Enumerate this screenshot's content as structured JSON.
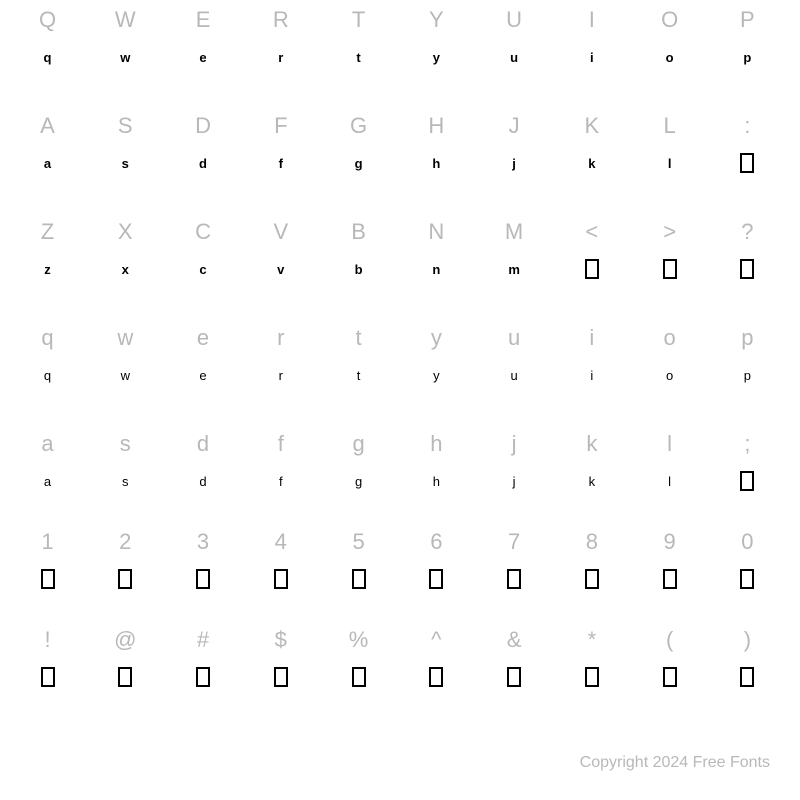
{
  "chart": {
    "type": "glyph-map",
    "columns": 10,
    "label_color": "#b8b8b8",
    "label_fontsize": 22,
    "glyph_color": "#000000",
    "glyph_fontsize": 13,
    "background_color": "#ffffff",
    "missing_box": {
      "width": 14,
      "height": 20,
      "border_width": 2,
      "border_color": "#000000"
    },
    "rows": [
      {
        "labels": [
          "Q",
          "W",
          "E",
          "R",
          "T",
          "Y",
          "U",
          "I",
          "O",
          "P"
        ],
        "glyphs": [
          {
            "type": "text",
            "value": "q",
            "style": "solid"
          },
          {
            "type": "text",
            "value": "w",
            "style": "solid"
          },
          {
            "type": "text",
            "value": "e",
            "style": "solid"
          },
          {
            "type": "text",
            "value": "r",
            "style": "solid"
          },
          {
            "type": "text",
            "value": "t",
            "style": "solid"
          },
          {
            "type": "text",
            "value": "y",
            "style": "solid"
          },
          {
            "type": "text",
            "value": "u",
            "style": "solid"
          },
          {
            "type": "text",
            "value": "i",
            "style": "solid"
          },
          {
            "type": "text",
            "value": "o",
            "style": "solid"
          },
          {
            "type": "text",
            "value": "p",
            "style": "solid"
          }
        ]
      },
      {
        "labels": [
          "A",
          "S",
          "D",
          "F",
          "G",
          "H",
          "J",
          "K",
          "L",
          ":"
        ],
        "glyphs": [
          {
            "type": "text",
            "value": "a",
            "style": "solid"
          },
          {
            "type": "text",
            "value": "s",
            "style": "solid"
          },
          {
            "type": "text",
            "value": "d",
            "style": "solid"
          },
          {
            "type": "text",
            "value": "f",
            "style": "solid"
          },
          {
            "type": "text",
            "value": "g",
            "style": "solid"
          },
          {
            "type": "text",
            "value": "h",
            "style": "solid"
          },
          {
            "type": "text",
            "value": "j",
            "style": "solid"
          },
          {
            "type": "text",
            "value": "k",
            "style": "solid"
          },
          {
            "type": "text",
            "value": "l",
            "style": "solid"
          },
          {
            "type": "box"
          }
        ]
      },
      {
        "labels": [
          "Z",
          "X",
          "C",
          "V",
          "B",
          "N",
          "M",
          "<",
          ">",
          "?"
        ],
        "glyphs": [
          {
            "type": "text",
            "value": "z",
            "style": "solid"
          },
          {
            "type": "text",
            "value": "x",
            "style": "solid"
          },
          {
            "type": "text",
            "value": "c",
            "style": "solid"
          },
          {
            "type": "text",
            "value": "v",
            "style": "solid"
          },
          {
            "type": "text",
            "value": "b",
            "style": "solid"
          },
          {
            "type": "text",
            "value": "n",
            "style": "solid"
          },
          {
            "type": "text",
            "value": "m",
            "style": "solid"
          },
          {
            "type": "box"
          },
          {
            "type": "box"
          },
          {
            "type": "box"
          }
        ]
      },
      {
        "labels": [
          "q",
          "w",
          "e",
          "r",
          "t",
          "y",
          "u",
          "i",
          "o",
          "p"
        ],
        "glyphs": [
          {
            "type": "text",
            "value": "q",
            "style": "outline"
          },
          {
            "type": "text",
            "value": "w",
            "style": "outline"
          },
          {
            "type": "text",
            "value": "e",
            "style": "outline"
          },
          {
            "type": "text",
            "value": "r",
            "style": "outline"
          },
          {
            "type": "text",
            "value": "t",
            "style": "outline"
          },
          {
            "type": "text",
            "value": "y",
            "style": "outline"
          },
          {
            "type": "text",
            "value": "u",
            "style": "outline"
          },
          {
            "type": "text",
            "value": "i",
            "style": "outline"
          },
          {
            "type": "text",
            "value": "o",
            "style": "outline"
          },
          {
            "type": "text",
            "value": "p",
            "style": "outline"
          }
        ]
      },
      {
        "labels": [
          "a",
          "s",
          "d",
          "f",
          "g",
          "h",
          "j",
          "k",
          "l",
          ";"
        ],
        "glyphs": [
          {
            "type": "text",
            "value": "a",
            "style": "outline"
          },
          {
            "type": "text",
            "value": "s",
            "style": "outline"
          },
          {
            "type": "text",
            "value": "d",
            "style": "outline"
          },
          {
            "type": "text",
            "value": "f",
            "style": "outline"
          },
          {
            "type": "text",
            "value": "g",
            "style": "outline"
          },
          {
            "type": "text",
            "value": "h",
            "style": "outline"
          },
          {
            "type": "text",
            "value": "j",
            "style": "outline"
          },
          {
            "type": "text",
            "value": "k",
            "style": "outline"
          },
          {
            "type": "text",
            "value": "l",
            "style": "outline"
          },
          {
            "type": "box"
          }
        ]
      },
      {
        "labels": [
          "1",
          "2",
          "3",
          "4",
          "5",
          "6",
          "7",
          "8",
          "9",
          "0"
        ],
        "glyphs": [
          {
            "type": "box"
          },
          {
            "type": "box"
          },
          {
            "type": "box"
          },
          {
            "type": "box"
          },
          {
            "type": "box"
          },
          {
            "type": "box"
          },
          {
            "type": "box"
          },
          {
            "type": "box"
          },
          {
            "type": "box"
          },
          {
            "type": "box"
          }
        ]
      },
      {
        "labels": [
          "!",
          "@",
          "#",
          "$",
          "%",
          "^",
          "&",
          "*",
          "(",
          ")"
        ],
        "glyphs": [
          {
            "type": "box"
          },
          {
            "type": "box"
          },
          {
            "type": "box"
          },
          {
            "type": "box"
          },
          {
            "type": "box"
          },
          {
            "type": "box"
          },
          {
            "type": "box"
          },
          {
            "type": "box"
          },
          {
            "type": "box"
          },
          {
            "type": "box"
          }
        ]
      }
    ]
  },
  "copyright": "Copyright 2024 Free Fonts"
}
